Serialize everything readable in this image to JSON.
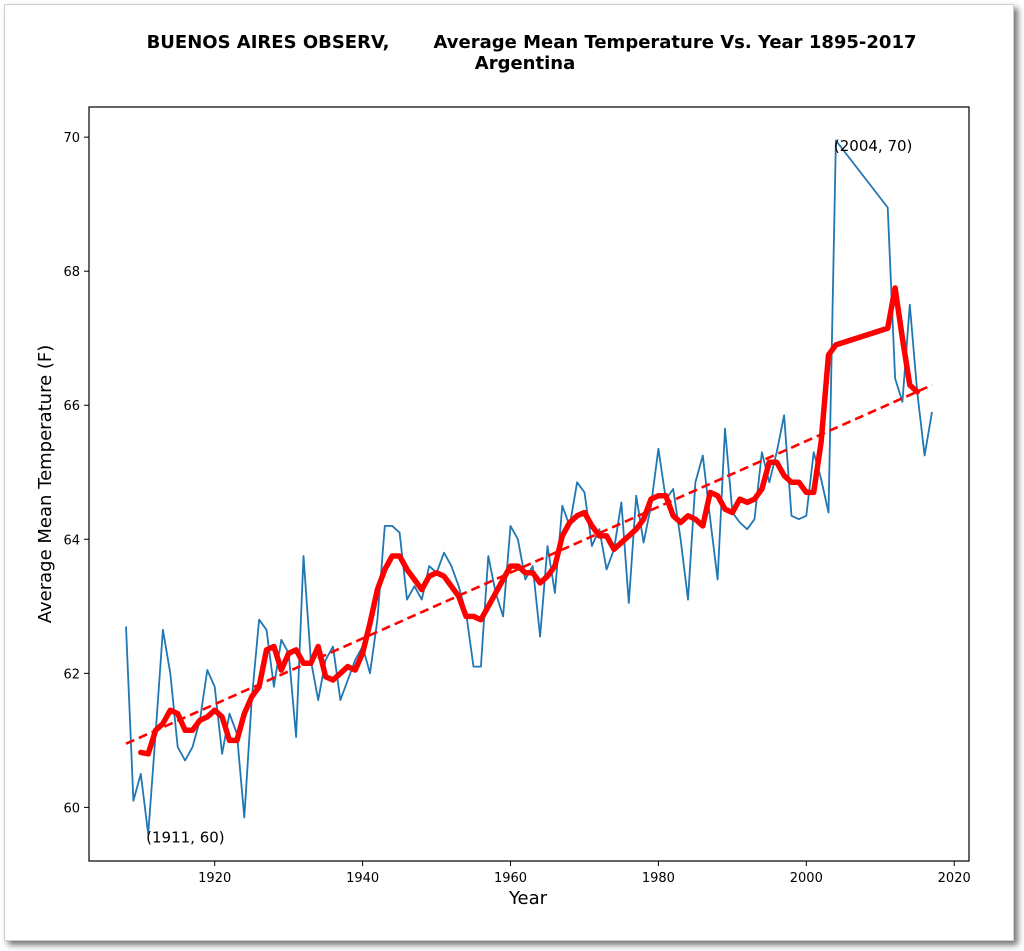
{
  "chart_data": {
    "type": "line",
    "title_left": "BUENOS AIRES OBSERV,",
    "title_right": "Average Mean Temperature Vs. Year 1895-2017",
    "subtitle": "Argentina",
    "xlabel": "Year",
    "ylabel": "Average Mean Temperature (F)",
    "xlim": [
      1903,
      2022
    ],
    "ylim": [
      59.2,
      70.45
    ],
    "xticks": [
      1920,
      1940,
      1960,
      1980,
      2000,
      2020
    ],
    "yticks": [
      60,
      62,
      64,
      66,
      68,
      70
    ],
    "colors": {
      "raw": "#1f77b4",
      "smooth": "#ff0000",
      "trend": "#ff0000"
    },
    "series": [
      {
        "x": [
          1908,
          1909,
          1910,
          1911,
          1912,
          1913,
          1914,
          1915,
          1916,
          1917,
          1918,
          1919,
          1920,
          1921,
          1922,
          1923,
          1924,
          1925,
          1926,
          1927,
          1928,
          1929,
          1930,
          1931,
          1932,
          1933,
          1934,
          1935,
          1936,
          1937,
          1938,
          1939,
          1940,
          1941,
          1942,
          1943,
          1944,
          1945,
          1946,
          1947,
          1948,
          1949,
          1950,
          1951,
          1952,
          1953,
          1954,
          1955,
          1956,
          1957,
          1958,
          1959,
          1960,
          1961,
          1962,
          1963,
          1964,
          1965,
          1966,
          1967,
          1968,
          1969,
          1970,
          1971,
          1972,
          1973,
          1974,
          1975,
          1976,
          1977,
          1978,
          1979,
          1980,
          1981,
          1982,
          1983,
          1984,
          1985,
          1986,
          1987,
          1988,
          1989,
          1990,
          1991,
          1992,
          1993,
          1994,
          1995,
          1996,
          1997,
          1998,
          1999,
          2000,
          2001,
          2002,
          2003,
          2004,
          2011,
          2012,
          2013,
          2014,
          2015,
          2016,
          2017
        ],
        "y": [
          62.7,
          60.1,
          60.5,
          59.6,
          61.1,
          62.65,
          62.0,
          60.9,
          60.7,
          60.9,
          61.3,
          62.05,
          61.8,
          60.8,
          61.4,
          61.1,
          59.85,
          61.6,
          62.8,
          62.65,
          61.8,
          62.5,
          62.3,
          61.05,
          63.75,
          62.2,
          61.6,
          62.2,
          62.4,
          61.6,
          61.9,
          62.2,
          62.4,
          62.0,
          62.8,
          64.2,
          64.2,
          64.1,
          63.1,
          63.3,
          63.1,
          63.6,
          63.5,
          63.8,
          63.6,
          63.3,
          62.9,
          62.1,
          62.1,
          63.75,
          63.2,
          62.85,
          64.2,
          64.0,
          63.4,
          63.6,
          62.55,
          63.9,
          63.2,
          64.5,
          64.2,
          64.85,
          64.7,
          63.9,
          64.15,
          63.55,
          63.85,
          64.55,
          63.05,
          64.65,
          63.95,
          64.5,
          65.35,
          64.6,
          64.75,
          64.0,
          63.1,
          64.85,
          65.25,
          64.3,
          63.4,
          65.65,
          64.4,
          64.25,
          64.15,
          64.3,
          65.3,
          64.85,
          65.3,
          65.85,
          64.35,
          64.3,
          64.35,
          65.3,
          64.9,
          64.4,
          69.95,
          68.95,
          66.4,
          66.05,
          67.5,
          66.2,
          65.25,
          65.9
        ]
      },
      {
        "x": [
          1910,
          1911,
          1912,
          1913,
          1914,
          1915,
          1916,
          1917,
          1918,
          1919,
          1920,
          1921,
          1922,
          1923,
          1924,
          1925,
          1926,
          1927,
          1928,
          1929,
          1930,
          1931,
          1932,
          1933,
          1934,
          1935,
          1936,
          1937,
          1938,
          1939,
          1940,
          1941,
          1942,
          1943,
          1944,
          1945,
          1946,
          1947,
          1948,
          1949,
          1950,
          1951,
          1952,
          1953,
          1954,
          1955,
          1956,
          1957,
          1958,
          1959,
          1960,
          1961,
          1962,
          1963,
          1964,
          1965,
          1966,
          1967,
          1968,
          1969,
          1970,
          1971,
          1972,
          1973,
          1974,
          1975,
          1976,
          1977,
          1978,
          1979,
          1980,
          1981,
          1982,
          1983,
          1984,
          1985,
          1986,
          1987,
          1988,
          1989,
          1990,
          1991,
          1992,
          1993,
          1994,
          1995,
          1996,
          1997,
          1998,
          1999,
          2000,
          2001,
          2002,
          2003,
          2004,
          2011,
          2012,
          2013,
          2014,
          2015
        ],
        "y": [
          60.82,
          60.8,
          61.15,
          61.25,
          61.45,
          61.4,
          61.15,
          61.15,
          61.3,
          61.35,
          61.45,
          61.35,
          61.0,
          61.0,
          61.4,
          61.65,
          61.8,
          62.35,
          62.4,
          62.05,
          62.3,
          62.35,
          62.15,
          62.15,
          62.4,
          61.95,
          61.9,
          62.0,
          62.1,
          62.05,
          62.3,
          62.75,
          63.25,
          63.55,
          63.75,
          63.75,
          63.55,
          63.4,
          63.25,
          63.45,
          63.5,
          63.45,
          63.3,
          63.15,
          62.85,
          62.85,
          62.8,
          63.0,
          63.2,
          63.4,
          63.6,
          63.6,
          63.5,
          63.5,
          63.35,
          63.45,
          63.6,
          64.05,
          64.25,
          64.35,
          64.4,
          64.2,
          64.05,
          64.05,
          63.85,
          63.95,
          64.05,
          64.15,
          64.3,
          64.6,
          64.65,
          64.65,
          64.35,
          64.25,
          64.35,
          64.3,
          64.2,
          64.7,
          64.65,
          64.45,
          64.4,
          64.6,
          64.55,
          64.6,
          64.75,
          65.15,
          65.15,
          64.95,
          64.85,
          64.85,
          64.7,
          64.7,
          65.45,
          66.75,
          66.9,
          67.15,
          67.75,
          67.0,
          66.3,
          66.2
        ]
      },
      {
        "x": [
          1908,
          2017
        ],
        "y": [
          60.95,
          66.3
        ]
      }
    ],
    "annotations": [
      {
        "text": "(1911, 60)",
        "x": 1911,
        "y": 59.55
      },
      {
        "text": "(2004, 70)",
        "x": 2004,
        "y": 69.87
      }
    ],
    "grid": false,
    "legend": "none"
  }
}
